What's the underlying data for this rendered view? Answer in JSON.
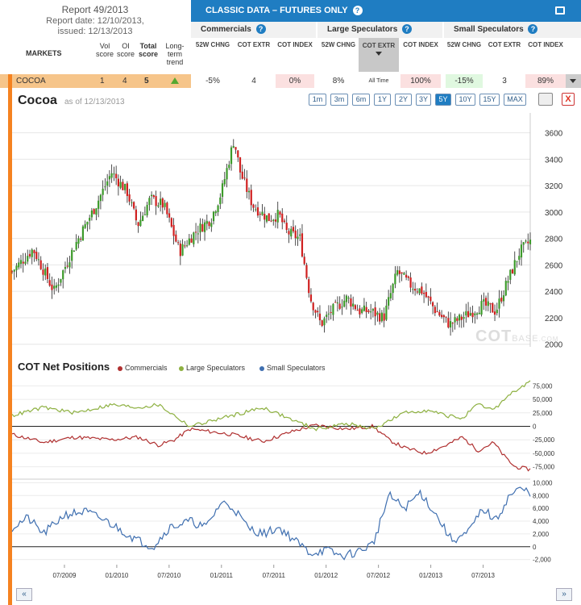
{
  "report": {
    "title": "Report 49/2013",
    "date": "Report date: 12/10/2013,",
    "issued": "issued: 12/13/2013"
  },
  "markets_header": {
    "markets": "MARKETS",
    "vol": "Vol score",
    "oi": "OI score",
    "total": "Total score",
    "trend": "Long-term trend"
  },
  "banner": {
    "title": "CLASSIC DATA – FUTURES ONLY",
    "help": "?"
  },
  "groups": {
    "commercials": "Commercials",
    "large": "Large Speculators",
    "small": "Small Speculators"
  },
  "col": {
    "chng": "52W CHNG",
    "extr": "COT EXTR",
    "index": "COT INDEX",
    "alltime": "All Time"
  },
  "row": {
    "market": "COCOA",
    "vol": "1",
    "oi": "4",
    "total": "5",
    "comm_chng": "-5%",
    "comm_extr": "4",
    "comm_index": "0%",
    "large_chng": "8%",
    "large_index": "100%",
    "small_chng": "-15%",
    "small_extr": "3",
    "small_index": "89%"
  },
  "price_chart": {
    "title": "Cocoa",
    "asof": "as of 12/13/2013"
  },
  "ranges": [
    "1m",
    "3m",
    "6m",
    "1Y",
    "2Y",
    "3Y",
    "5Y",
    "10Y",
    "15Y",
    "MAX"
  ],
  "active_range": "5Y",
  "close_label": "X",
  "watermark": {
    "main": "COT",
    "sub": "BASE",
    "tail": ".COM"
  },
  "cot_chart": {
    "title": "COT Net Positions"
  },
  "nav": {
    "prev": "«",
    "next": "»"
  },
  "colors": {
    "up": "#3c9a2a",
    "down": "#d02020",
    "commercials": "#b03030",
    "large": "#8db040",
    "small": "#3f6fb0",
    "orange": "#f58220",
    "banner": "#1f7dc2"
  },
  "chart_data": [
    {
      "type": "candlestick",
      "title": "Cocoa",
      "x_ticks": [
        "07/2009",
        "01/2010",
        "07/2010",
        "01/2011",
        "07/2011",
        "01/2012",
        "07/2012",
        "01/2013",
        "07/2013"
      ],
      "y_ticks": [
        2000,
        2200,
        2400,
        2600,
        2800,
        3000,
        3200,
        3400,
        3600
      ],
      "ylim": [
        1980,
        3750
      ],
      "x_range": [
        "2009-01",
        "2013-12"
      ],
      "close_path": [
        [
          2009.0,
          2550
        ],
        [
          2009.2,
          2720
        ],
        [
          2009.4,
          2400
        ],
        [
          2009.6,
          2750
        ],
        [
          2009.8,
          3050
        ],
        [
          2009.95,
          3300
        ],
        [
          2010.1,
          3150
        ],
        [
          2010.2,
          2900
        ],
        [
          2010.32,
          3100
        ],
        [
          2010.45,
          3050
        ],
        [
          2010.6,
          2700
        ],
        [
          2010.75,
          2850
        ],
        [
          2010.9,
          2950
        ],
        [
          2011.0,
          3150
        ],
        [
          2011.12,
          3550
        ],
        [
          2011.18,
          3300
        ],
        [
          2011.3,
          3050
        ],
        [
          2011.45,
          2950
        ],
        [
          2011.55,
          2980
        ],
        [
          2011.62,
          2850
        ],
        [
          2011.75,
          2800
        ],
        [
          2011.85,
          2350
        ],
        [
          2011.95,
          2150
        ],
        [
          2012.05,
          2250
        ],
        [
          2012.2,
          2350
        ],
        [
          2012.32,
          2250
        ],
        [
          2012.42,
          2250
        ],
        [
          2012.55,
          2200
        ],
        [
          2012.68,
          2550
        ],
        [
          2012.8,
          2450
        ],
        [
          2012.92,
          2400
        ],
        [
          2013.05,
          2250
        ],
        [
          2013.18,
          2150
        ],
        [
          2013.3,
          2200
        ],
        [
          2013.5,
          2300
        ],
        [
          2013.62,
          2250
        ],
        [
          2013.72,
          2450
        ],
        [
          2013.85,
          2700
        ],
        [
          2013.95,
          2780
        ]
      ]
    },
    {
      "type": "line",
      "title": "COT Net Positions",
      "series": [
        {
          "name": "Commercials",
          "values": [
            [
              2009.0,
              -15000
            ],
            [
              2009.3,
              -30000
            ],
            [
              2009.6,
              -20000
            ],
            [
              2009.95,
              -25000
            ],
            [
              2010.2,
              -20000
            ],
            [
              2010.4,
              -35000
            ],
            [
              2010.55,
              -25000
            ],
            [
              2010.7,
              -5000
            ],
            [
              2010.9,
              -10000
            ],
            [
              2011.1,
              -15000
            ],
            [
              2011.4,
              -28000
            ],
            [
              2011.7,
              -8000
            ],
            [
              2011.9,
              2000
            ],
            [
              2012.2,
              -5000
            ],
            [
              2012.45,
              0
            ],
            [
              2012.6,
              -25000
            ],
            [
              2012.75,
              -40000
            ],
            [
              2012.95,
              -50000
            ],
            [
              2013.15,
              -35000
            ],
            [
              2013.3,
              -20000
            ],
            [
              2013.45,
              -45000
            ],
            [
              2013.6,
              -30000
            ],
            [
              2013.7,
              -55000
            ],
            [
              2013.8,
              -75000
            ],
            [
              2013.95,
              -80000
            ]
          ]
        },
        {
          "name": "Large Speculators",
          "values": [
            [
              2009.0,
              20000
            ],
            [
              2009.3,
              35000
            ],
            [
              2009.6,
              25000
            ],
            [
              2009.95,
              40000
            ],
            [
              2010.2,
              35000
            ],
            [
              2010.4,
              40000
            ],
            [
              2010.55,
              20000
            ],
            [
              2010.7,
              0
            ],
            [
              2010.9,
              10000
            ],
            [
              2011.1,
              20000
            ],
            [
              2011.4,
              35000
            ],
            [
              2011.7,
              10000
            ],
            [
              2011.9,
              -5000
            ],
            [
              2012.2,
              5000
            ],
            [
              2012.45,
              -5000
            ],
            [
              2012.6,
              10000
            ],
            [
              2012.75,
              25000
            ],
            [
              2012.95,
              30000
            ],
            [
              2013.15,
              20000
            ],
            [
              2013.3,
              15000
            ],
            [
              2013.45,
              40000
            ],
            [
              2013.6,
              30000
            ],
            [
              2013.7,
              50000
            ],
            [
              2013.8,
              65000
            ],
            [
              2013.95,
              82000
            ]
          ]
        },
        {
          "name": "Small Speculators",
          "values": [
            [
              2009.0,
              3000
            ],
            [
              2009.15,
              4500
            ],
            [
              2009.3,
              2000
            ],
            [
              2009.5,
              5000
            ],
            [
              2009.7,
              5500
            ],
            [
              2009.9,
              4000
            ],
            [
              2010.05,
              2500
            ],
            [
              2010.2,
              1000
            ],
            [
              2010.35,
              0
            ],
            [
              2010.5,
              3000
            ],
            [
              2010.7,
              4000
            ],
            [
              2010.85,
              3000
            ],
            [
              2011.0,
              7000
            ],
            [
              2011.12,
              6000
            ],
            [
              2011.25,
              3000
            ],
            [
              2011.4,
              2000
            ],
            [
              2011.55,
              3000
            ],
            [
              2011.7,
              1000
            ],
            [
              2011.85,
              -1000
            ],
            [
              2012.0,
              -500
            ],
            [
              2012.15,
              -1500
            ],
            [
              2012.3,
              -800
            ],
            [
              2012.45,
              500
            ],
            [
              2012.6,
              8000
            ],
            [
              2012.75,
              6000
            ],
            [
              2012.9,
              8500
            ],
            [
              2013.05,
              5000
            ],
            [
              2013.2,
              1000
            ],
            [
              2013.35,
              2000
            ],
            [
              2013.5,
              6000
            ],
            [
              2013.62,
              4000
            ],
            [
              2013.75,
              8000
            ],
            [
              2013.85,
              9000
            ],
            [
              2013.95,
              8500
            ]
          ]
        }
      ],
      "upper_ticks": [
        "75,000",
        "50,000",
        "25,000",
        "0",
        "-25,000",
        "-50,000",
        "-75,000"
      ],
      "upper_ylim": [
        -95000,
        95000
      ],
      "lower_ticks": [
        "10,000",
        "8,000",
        "6,000",
        "4,000",
        "2,000",
        "0",
        "-2,000"
      ],
      "lower_ylim": [
        -2800,
        10300
      ]
    }
  ]
}
